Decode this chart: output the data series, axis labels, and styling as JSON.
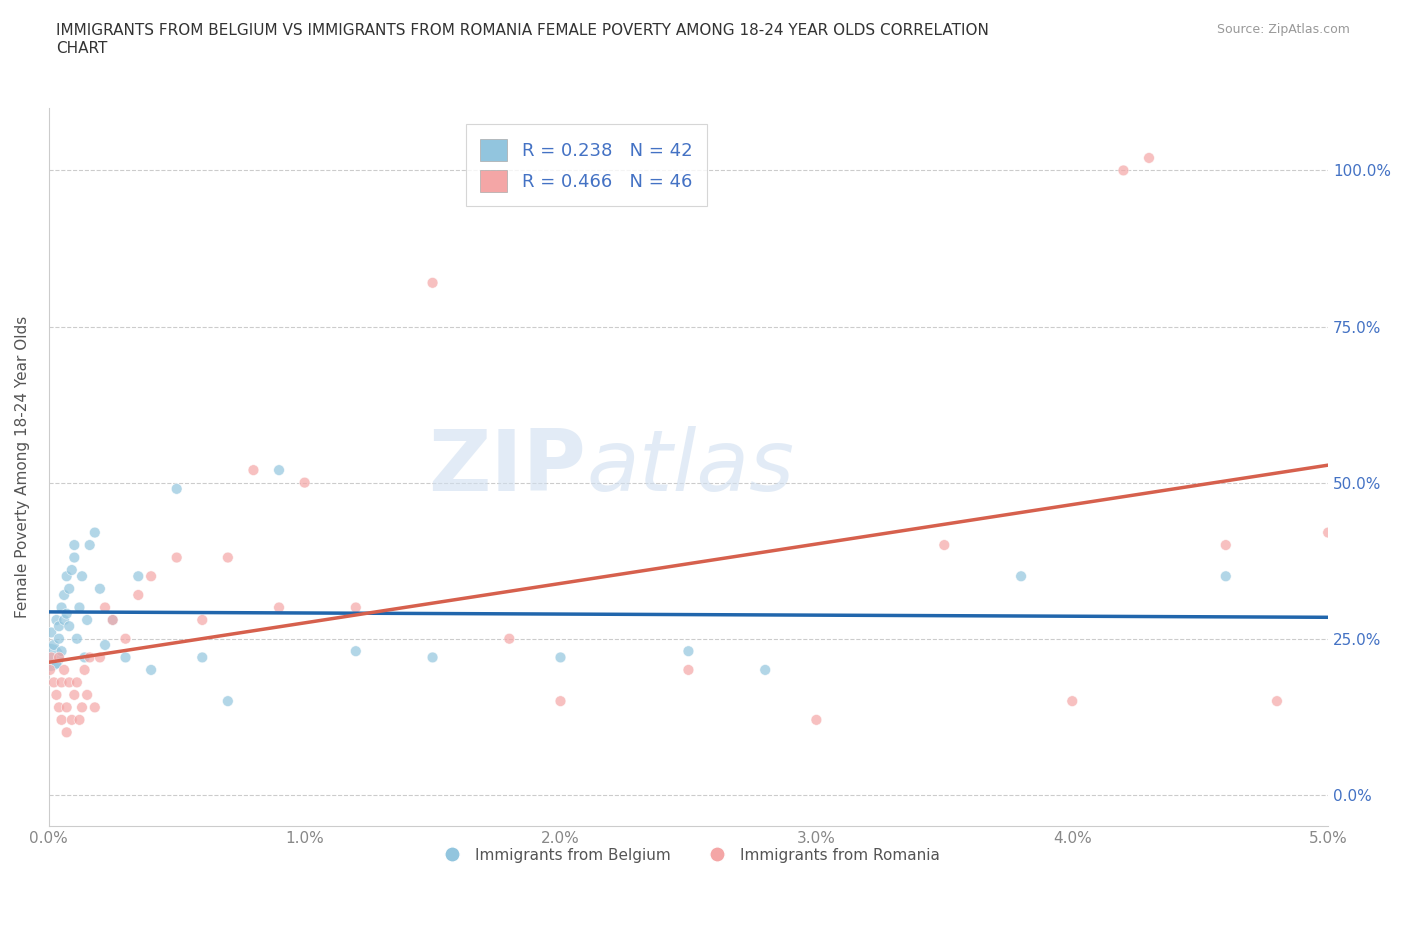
{
  "title": "IMMIGRANTS FROM BELGIUM VS IMMIGRANTS FROM ROMANIA FEMALE POVERTY AMONG 18-24 YEAR OLDS CORRELATION\nCHART",
  "source": "Source: ZipAtlas.com",
  "ylabel": "Female Poverty Among 18-24 Year Olds",
  "xlim": [
    0.0,
    0.05
  ],
  "ylim": [
    -0.05,
    1.1
  ],
  "yticks": [
    0.0,
    0.25,
    0.5,
    0.75,
    1.0
  ],
  "ytick_labels": [
    "0.0%",
    "25.0%",
    "50.0%",
    "75.0%",
    "100.0%"
  ],
  "xticks": [
    0.0,
    0.01,
    0.02,
    0.03,
    0.04,
    0.05
  ],
  "xtick_labels": [
    "0.0%",
    "1.0%",
    "2.0%",
    "3.0%",
    "4.0%",
    "5.0%"
  ],
  "belgium_color": "#92c5de",
  "romania_color": "#f4a6a6",
  "belgium_line_color": "#2166ac",
  "romania_line_color": "#d6604d",
  "legend_belgium_label": "Immigrants from Belgium",
  "legend_romania_label": "Immigrants from Romania",
  "R_belgium": 0.238,
  "N_belgium": 42,
  "R_romania": 0.466,
  "N_romania": 46,
  "watermark_zip": "ZIP",
  "watermark_atlas": "atlas",
  "belgium_x": [
    5e-05,
    0.0001,
    0.0002,
    0.0003,
    0.0003,
    0.0004,
    0.0004,
    0.0005,
    0.0005,
    0.0006,
    0.0006,
    0.0007,
    0.0007,
    0.0008,
    0.0008,
    0.0009,
    0.001,
    0.001,
    0.0011,
    0.0012,
    0.0013,
    0.0014,
    0.0015,
    0.0016,
    0.0018,
    0.002,
    0.0022,
    0.0025,
    0.003,
    0.0035,
    0.004,
    0.005,
    0.006,
    0.007,
    0.009,
    0.012,
    0.015,
    0.02,
    0.025,
    0.028,
    0.038,
    0.046
  ],
  "belgium_y": [
    0.22,
    0.26,
    0.24,
    0.28,
    0.21,
    0.27,
    0.25,
    0.23,
    0.3,
    0.28,
    0.32,
    0.29,
    0.35,
    0.27,
    0.33,
    0.36,
    0.4,
    0.38,
    0.25,
    0.3,
    0.35,
    0.22,
    0.28,
    0.4,
    0.42,
    0.33,
    0.24,
    0.28,
    0.22,
    0.35,
    0.2,
    0.49,
    0.22,
    0.15,
    0.52,
    0.23,
    0.22,
    0.22,
    0.23,
    0.2,
    0.35,
    0.35
  ],
  "belgium_sizes": [
    400,
    60,
    60,
    60,
    60,
    60,
    60,
    60,
    60,
    60,
    60,
    60,
    60,
    60,
    60,
    60,
    60,
    60,
    60,
    60,
    60,
    60,
    60,
    60,
    60,
    60,
    60,
    60,
    60,
    60,
    60,
    60,
    60,
    60,
    60,
    60,
    60,
    60,
    60,
    60,
    60,
    60
  ],
  "romania_x": [
    5e-05,
    0.0001,
    0.0002,
    0.0003,
    0.0004,
    0.0004,
    0.0005,
    0.0005,
    0.0006,
    0.0007,
    0.0007,
    0.0008,
    0.0009,
    0.001,
    0.0011,
    0.0012,
    0.0013,
    0.0014,
    0.0015,
    0.0016,
    0.0018,
    0.002,
    0.0022,
    0.0025,
    0.003,
    0.0035,
    0.004,
    0.005,
    0.006,
    0.007,
    0.008,
    0.009,
    0.01,
    0.012,
    0.015,
    0.018,
    0.02,
    0.025,
    0.03,
    0.035,
    0.04,
    0.042,
    0.043,
    0.046,
    0.048,
    0.05
  ],
  "romania_y": [
    0.2,
    0.22,
    0.18,
    0.16,
    0.22,
    0.14,
    0.12,
    0.18,
    0.2,
    0.14,
    0.1,
    0.18,
    0.12,
    0.16,
    0.18,
    0.12,
    0.14,
    0.2,
    0.16,
    0.22,
    0.14,
    0.22,
    0.3,
    0.28,
    0.25,
    0.32,
    0.35,
    0.38,
    0.28,
    0.38,
    0.52,
    0.3,
    0.5,
    0.3,
    0.82,
    0.25,
    0.15,
    0.2,
    0.12,
    0.4,
    0.15,
    1.0,
    1.02,
    0.4,
    0.15,
    0.42
  ],
  "romania_sizes": [
    60,
    60,
    60,
    60,
    60,
    60,
    60,
    60,
    60,
    60,
    60,
    60,
    60,
    60,
    60,
    60,
    60,
    60,
    60,
    60,
    60,
    60,
    60,
    60,
    60,
    60,
    60,
    60,
    60,
    60,
    60,
    60,
    60,
    60,
    60,
    60,
    60,
    60,
    60,
    60,
    60,
    60,
    60,
    60,
    60,
    60
  ]
}
